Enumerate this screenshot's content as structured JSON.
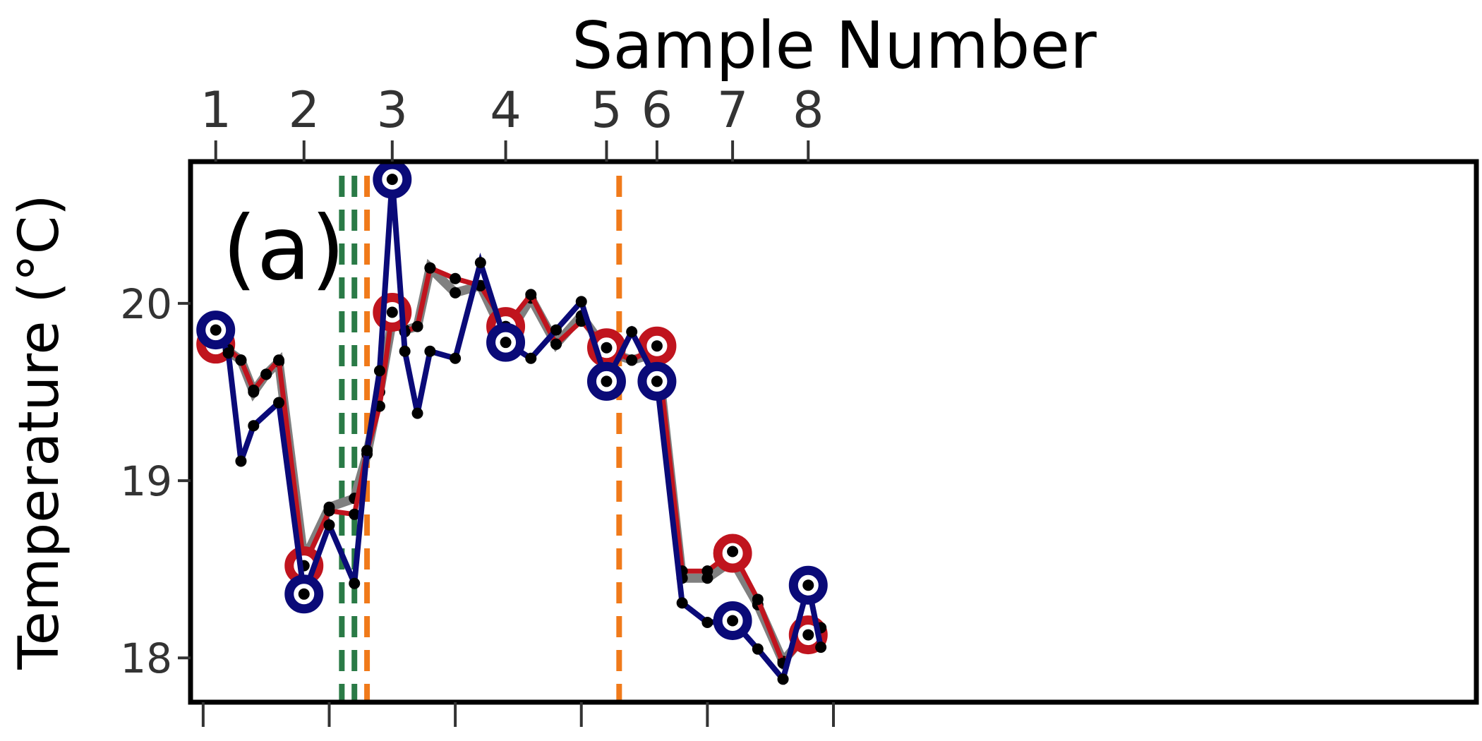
{
  "chart_data": {
    "type": "line",
    "panel_label": "(a)",
    "xlabel": "Sample Number",
    "ylabel": "Temperature (°C)",
    "ylim": [
      17.75,
      20.8
    ],
    "xlim": [
      -0.1,
      10.1
    ],
    "yticks": [
      "18",
      "19",
      "20"
    ],
    "ytick_values": [
      18,
      19,
      20
    ],
    "sample_ticks": [
      {
        "label": "1",
        "x": 0.1
      },
      {
        "label": "2",
        "x": 0.8
      },
      {
        "label": "3",
        "x": 1.5
      },
      {
        "label": "4",
        "x": 2.4
      },
      {
        "label": "5",
        "x": 3.2
      },
      {
        "label": "6",
        "x": 3.6
      },
      {
        "label": "7",
        "x": 4.2
      },
      {
        "label": "8",
        "x": 4.8
      }
    ],
    "bottom_ticks": [
      0,
      1,
      2,
      3,
      4,
      5
    ],
    "vertical_lines": [
      {
        "x": 1.1,
        "color": "#2a7a46"
      },
      {
        "x": 1.2,
        "color": "#2a7a46"
      },
      {
        "x": 1.3,
        "color": "#f07a1a"
      },
      {
        "x": 3.3,
        "color": "#f07a1a"
      }
    ],
    "series": [
      {
        "color": "#808080",
        "points": [
          [
            0.1,
            19.8
          ],
          [
            0.2,
            19.73
          ],
          [
            0.3,
            19.68
          ],
          [
            0.4,
            19.5
          ],
          [
            0.5,
            19.6
          ],
          [
            0.6,
            19.67
          ],
          [
            0.8,
            18.55
          ],
          [
            1.0,
            18.85
          ],
          [
            1.2,
            18.9
          ],
          [
            1.3,
            19.15
          ],
          [
            1.4,
            19.5
          ],
          [
            1.5,
            19.9
          ],
          [
            1.6,
            19.85
          ],
          [
            1.7,
            19.87
          ],
          [
            1.8,
            20.2
          ],
          [
            2.0,
            20.06
          ],
          [
            2.2,
            20.1
          ],
          [
            2.4,
            19.8
          ],
          [
            2.6,
            20.03
          ],
          [
            2.8,
            19.77
          ],
          [
            3.0,
            19.93
          ],
          [
            3.2,
            19.73
          ],
          [
            3.4,
            19.68
          ],
          [
            3.6,
            19.72
          ],
          [
            3.8,
            18.45
          ],
          [
            4.0,
            18.45
          ],
          [
            4.2,
            18.55
          ],
          [
            4.4,
            18.3
          ],
          [
            4.6,
            17.98
          ],
          [
            4.8,
            18.15
          ],
          [
            4.9,
            18.17
          ]
        ],
        "samples": [
          [
            0.1,
            19.79
          ],
          [
            0.8,
            18.52
          ],
          [
            1.5,
            19.93
          ],
          [
            2.4,
            19.83
          ],
          [
            3.2,
            19.74
          ],
          [
            3.6,
            19.74
          ],
          [
            4.2,
            18.6
          ],
          [
            4.8,
            18.15
          ]
        ]
      },
      {
        "color": "#c0141e",
        "points": [
          [
            0.1,
            19.8
          ],
          [
            0.2,
            19.74
          ],
          [
            0.3,
            19.68
          ],
          [
            0.4,
            19.51
          ],
          [
            0.5,
            19.6
          ],
          [
            0.6,
            19.68
          ],
          [
            0.8,
            18.52
          ],
          [
            1.0,
            18.83
          ],
          [
            1.2,
            18.81
          ],
          [
            1.3,
            19.17
          ],
          [
            1.4,
            19.42
          ],
          [
            1.5,
            19.95
          ],
          [
            1.6,
            19.84
          ],
          [
            1.7,
            19.87
          ],
          [
            1.8,
            20.2
          ],
          [
            2.0,
            20.14
          ],
          [
            2.2,
            20.1
          ],
          [
            2.4,
            19.87
          ],
          [
            2.6,
            20.05
          ],
          [
            2.8,
            19.77
          ],
          [
            3.0,
            19.9
          ],
          [
            3.2,
            19.75
          ],
          [
            3.4,
            19.68
          ],
          [
            3.6,
            19.76
          ],
          [
            3.8,
            18.49
          ],
          [
            4.0,
            18.49
          ],
          [
            4.2,
            18.6
          ],
          [
            4.4,
            18.33
          ],
          [
            4.6,
            17.97
          ],
          [
            4.8,
            18.13
          ],
          [
            4.9,
            18.17
          ]
        ],
        "samples": [
          [
            0.1,
            19.77
          ],
          [
            0.8,
            18.52
          ],
          [
            1.5,
            19.95
          ],
          [
            2.4,
            19.87
          ],
          [
            3.2,
            19.75
          ],
          [
            3.6,
            19.76
          ],
          [
            4.2,
            18.59
          ],
          [
            4.8,
            18.13
          ]
        ]
      },
      {
        "color": "#0a0a78",
        "points": [
          [
            0.1,
            19.85
          ],
          [
            0.2,
            19.72
          ],
          [
            0.3,
            19.11
          ],
          [
            0.4,
            19.31
          ],
          [
            0.6,
            19.44
          ],
          [
            0.8,
            18.36
          ],
          [
            1.0,
            18.75
          ],
          [
            1.2,
            18.42
          ],
          [
            1.3,
            19.17
          ],
          [
            1.4,
            19.62
          ],
          [
            1.5,
            20.7
          ],
          [
            1.6,
            19.73
          ],
          [
            1.7,
            19.38
          ],
          [
            1.8,
            19.73
          ],
          [
            2.0,
            19.69
          ],
          [
            2.2,
            20.23
          ],
          [
            2.4,
            19.78
          ],
          [
            2.6,
            19.69
          ],
          [
            2.8,
            19.85
          ],
          [
            3.0,
            20.01
          ],
          [
            3.2,
            19.56
          ],
          [
            3.4,
            19.84
          ],
          [
            3.6,
            19.56
          ],
          [
            3.8,
            18.31
          ],
          [
            4.0,
            18.2
          ],
          [
            4.2,
            18.21
          ],
          [
            4.4,
            18.05
          ],
          [
            4.6,
            17.88
          ],
          [
            4.8,
            18.41
          ],
          [
            4.9,
            18.06
          ]
        ],
        "samples": [
          [
            0.1,
            19.85
          ],
          [
            0.8,
            18.36
          ],
          [
            1.5,
            20.7
          ],
          [
            2.4,
            19.78
          ],
          [
            3.2,
            19.56
          ],
          [
            3.6,
            19.56
          ],
          [
            4.2,
            18.21
          ],
          [
            4.8,
            18.41
          ]
        ]
      }
    ],
    "grid": false,
    "legend": "none"
  }
}
